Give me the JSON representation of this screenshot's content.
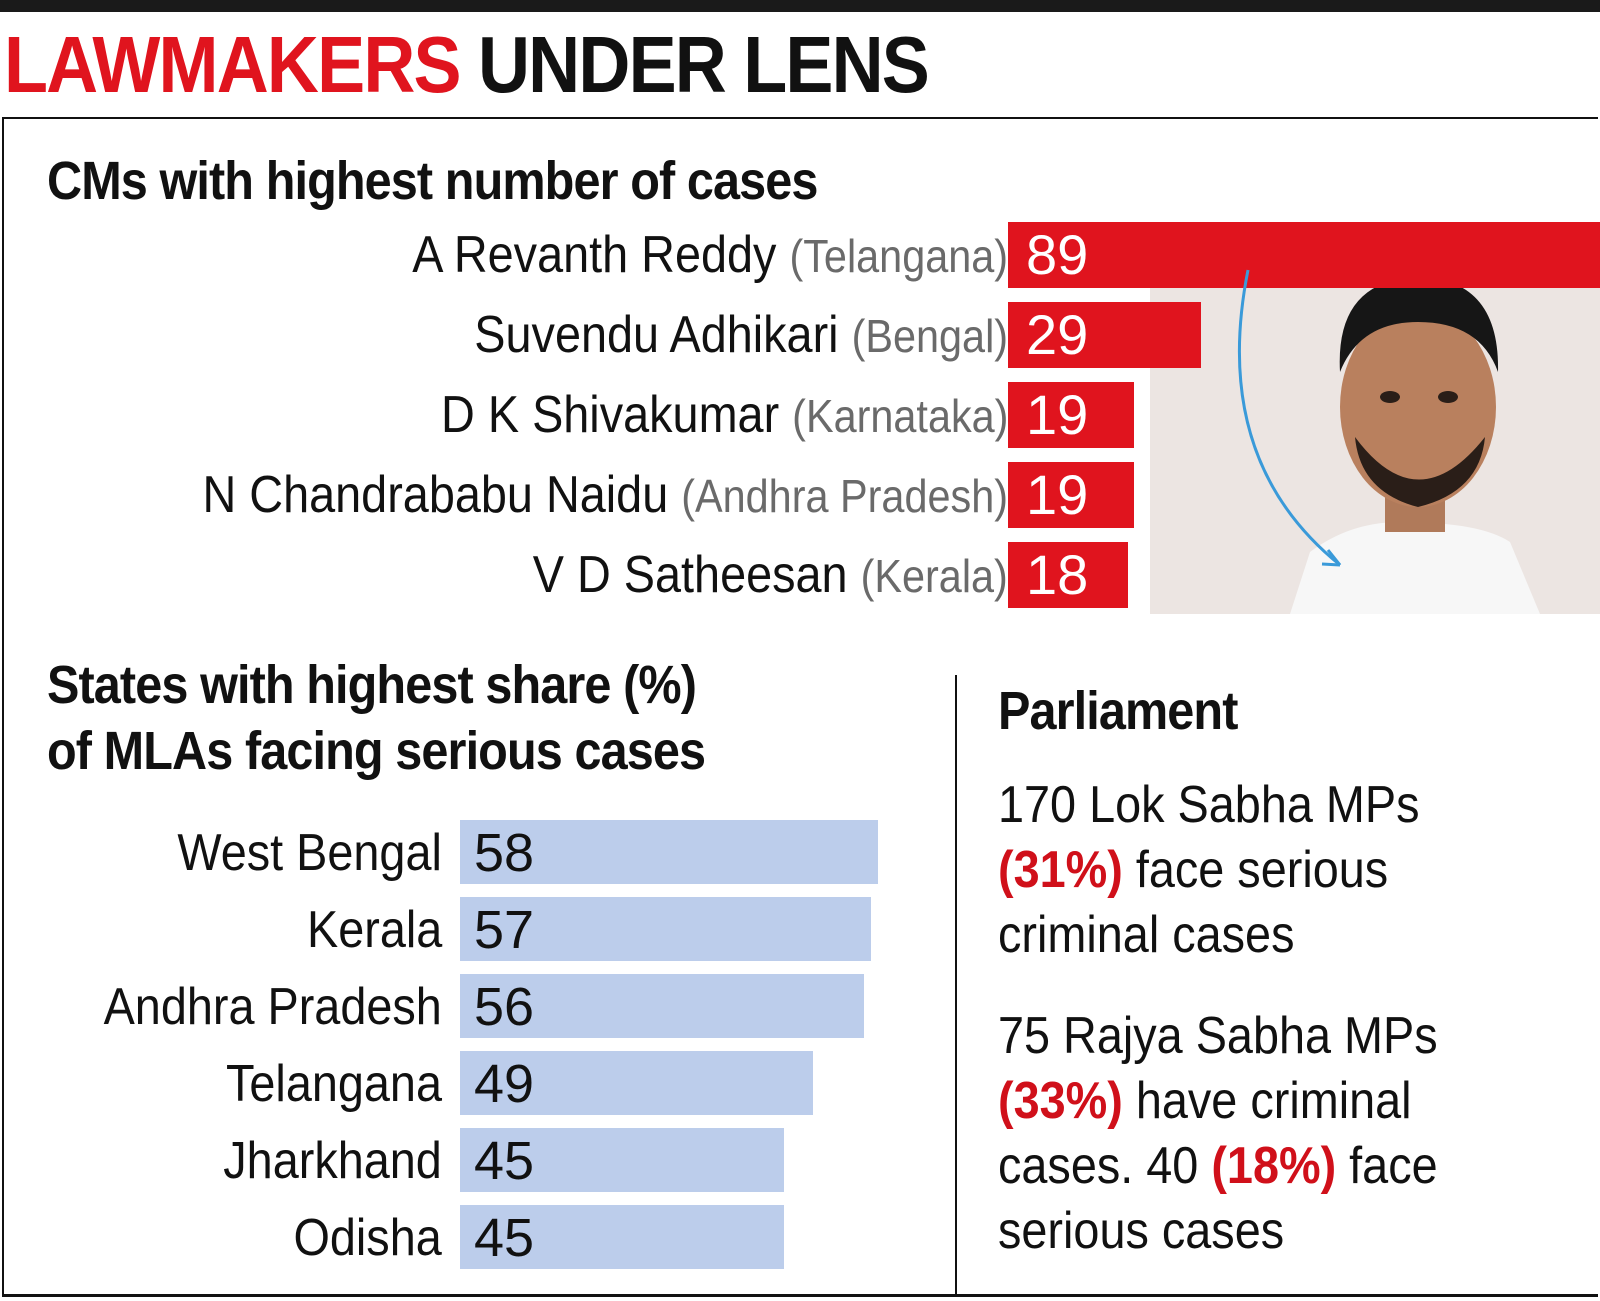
{
  "header": {
    "title_red": "LAWMAKERS",
    "title_black": "UNDER LENS"
  },
  "colors": {
    "accent_red": "#e0141e",
    "bar_blue": "#bccdeb",
    "state_gray": "#6a6a6a"
  },
  "photo": {
    "description_icon": "person-photo-icon"
  },
  "chart_data": [
    {
      "type": "bar",
      "title": "CMs with highest number of cases",
      "orientation": "horizontal",
      "categories": [
        "A Revanth Reddy",
        "Suvendu Adhikari",
        "D K Shivakumar",
        "N Chandrababu Naidu",
        "V D Satheesan"
      ],
      "states": [
        "(Telangana)",
        "(Bengal)",
        "(Karnataka)",
        "(Andhra Pradesh)",
        "(Kerala)"
      ],
      "values": [
        89,
        29,
        19,
        19,
        18
      ],
      "value_labels": [
        "89",
        "29",
        "19",
        "19",
        "18"
      ],
      "xlim": [
        0,
        89
      ],
      "color": "#e0141e"
    },
    {
      "type": "bar",
      "title_line1": "States with highest share (%)",
      "title_line2": "of MLAs facing serious cases",
      "orientation": "horizontal",
      "categories": [
        "West Bengal",
        "Kerala",
        "Andhra Pradesh",
        "Telangana",
        "Jharkhand",
        "Odisha"
      ],
      "values": [
        58,
        57,
        56,
        49,
        45,
        45
      ],
      "value_labels": [
        "58",
        "57",
        "56",
        "49",
        "45",
        "45"
      ],
      "xlim": [
        0,
        58
      ],
      "color": "#bccdeb"
    }
  ],
  "parliament": {
    "heading": "Parliament",
    "lok_line1": "170 Lok Sabha MPs",
    "lok_pct": "(31%)",
    "lok_line2_rest": " face serious",
    "lok_line3": "criminal cases",
    "rs_line1": "75 Rajya Sabha MPs",
    "rs_pct": "(33%)",
    "rs_line2_rest": " have criminal",
    "rs_line3_pre": "cases. 40 ",
    "rs_pct2": "(18%)",
    "rs_line3_post": " face",
    "rs_line4": "serious cases"
  }
}
